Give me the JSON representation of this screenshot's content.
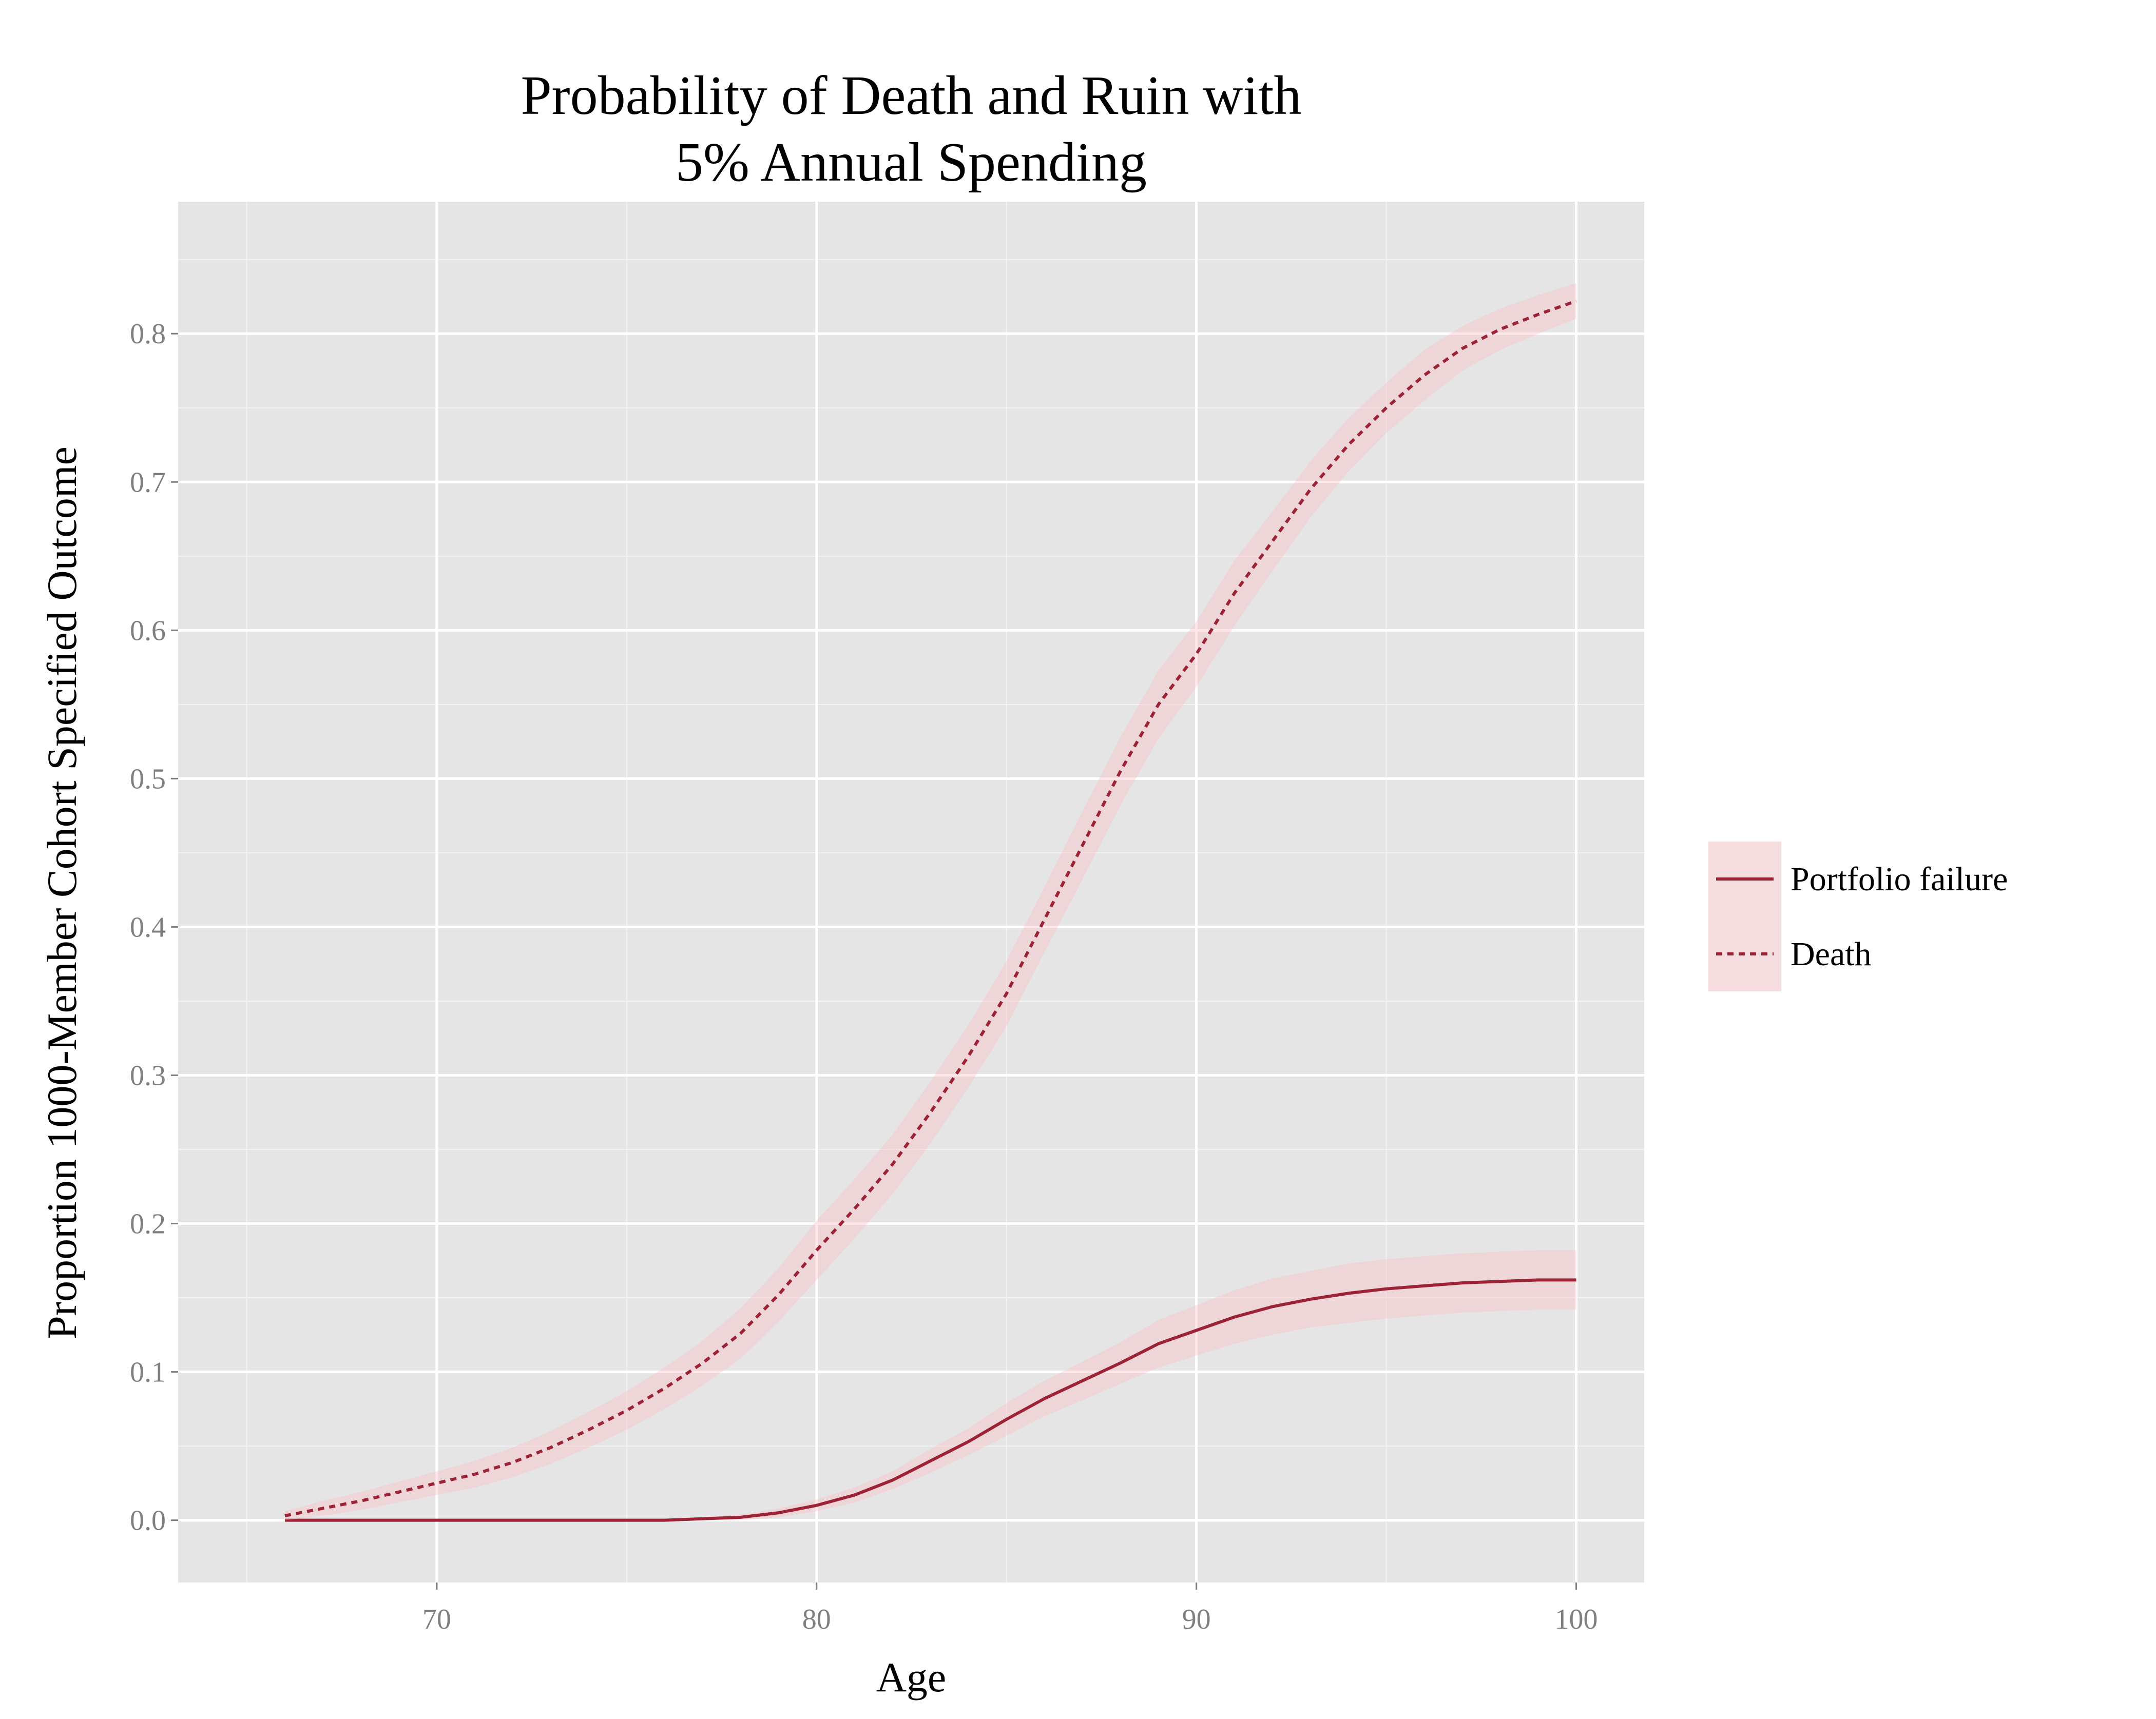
{
  "chart_data": {
    "type": "line",
    "title": [
      "Probability of Death and Ruin with",
      "5% Annual Spending"
    ],
    "x_label": "Age",
    "y_label": "Proportion 1000-Member Cohort Specified Outcome",
    "x": [
      66,
      67,
      68,
      69,
      70,
      71,
      72,
      73,
      74,
      75,
      76,
      77,
      78,
      79,
      80,
      81,
      82,
      83,
      84,
      85,
      86,
      87,
      88,
      89,
      90,
      91,
      92,
      93,
      94,
      95,
      96,
      97,
      98,
      99,
      100
    ],
    "series": [
      {
        "name": "Portfolio failure",
        "color": "#9b2335",
        "dash": false,
        "ribbon_color": "#ffb6c1",
        "values": [
          0,
          0,
          0,
          0,
          0,
          0,
          0,
          0,
          0,
          0,
          0,
          0.001,
          0.002,
          0.005,
          0.01,
          0.017,
          0.027,
          0.04,
          0.053,
          0.068,
          0.082,
          0.094,
          0.106,
          0.119,
          0.128,
          0.137,
          0.144,
          0.149,
          0.153,
          0.156,
          0.158,
          0.16,
          0.161,
          0.162,
          0.162
        ],
        "lower": [
          0,
          0,
          0,
          0,
          0,
          0,
          0,
          0,
          0,
          0,
          0,
          0,
          0,
          0.002,
          0.006,
          0.012,
          0.021,
          0.032,
          0.044,
          0.057,
          0.07,
          0.081,
          0.092,
          0.103,
          0.111,
          0.119,
          0.125,
          0.13,
          0.133,
          0.136,
          0.138,
          0.14,
          0.141,
          0.142,
          0.142
        ],
        "upper": [
          0,
          0,
          0,
          0,
          0,
          0,
          0,
          0,
          0,
          0,
          0,
          0.002,
          0.004,
          0.008,
          0.014,
          0.022,
          0.033,
          0.048,
          0.062,
          0.079,
          0.094,
          0.107,
          0.12,
          0.135,
          0.145,
          0.155,
          0.163,
          0.168,
          0.173,
          0.176,
          0.178,
          0.18,
          0.181,
          0.182,
          0.182
        ]
      },
      {
        "name": "Death",
        "color": "#9b2335",
        "dash": true,
        "ribbon_color": "#ffb6c1",
        "values": [
          0.003,
          0.008,
          0.013,
          0.019,
          0.025,
          0.031,
          0.039,
          0.049,
          0.061,
          0.074,
          0.089,
          0.106,
          0.126,
          0.152,
          0.182,
          0.21,
          0.24,
          0.275,
          0.313,
          0.355,
          0.405,
          0.455,
          0.505,
          0.55,
          0.584,
          0.625,
          0.66,
          0.695,
          0.725,
          0.75,
          0.772,
          0.79,
          0.803,
          0.813,
          0.822
        ],
        "lower": [
          0,
          0.003,
          0.007,
          0.012,
          0.017,
          0.022,
          0.029,
          0.038,
          0.049,
          0.061,
          0.075,
          0.091,
          0.109,
          0.134,
          0.162,
          0.19,
          0.22,
          0.254,
          0.292,
          0.333,
          0.383,
          0.432,
          0.482,
          0.527,
          0.562,
          0.603,
          0.64,
          0.676,
          0.707,
          0.733,
          0.755,
          0.775,
          0.789,
          0.8,
          0.81
        ],
        "upper": [
          0.006,
          0.013,
          0.019,
          0.026,
          0.033,
          0.04,
          0.049,
          0.06,
          0.073,
          0.087,
          0.103,
          0.121,
          0.143,
          0.17,
          0.202,
          0.23,
          0.26,
          0.296,
          0.334,
          0.377,
          0.427,
          0.478,
          0.528,
          0.573,
          0.606,
          0.647,
          0.68,
          0.714,
          0.743,
          0.767,
          0.789,
          0.805,
          0.817,
          0.826,
          0.834
        ]
      }
    ],
    "xlim": [
      63.19,
      101.79
    ],
    "ylim": [
      -0.042,
      0.889
    ],
    "xticks": [
      70,
      80,
      90,
      100
    ],
    "yticks": [
      {
        "value": 0,
        "label": "0.0"
      },
      0.1,
      0.2,
      0.3,
      0.4,
      0.5,
      0.6,
      0.7,
      0.8
    ],
    "xminorticks": [
      65,
      75,
      85,
      95
    ],
    "yminorticks": [
      0.05,
      0.15,
      0.25,
      0.35,
      0.45,
      0.55,
      0.65,
      0.75,
      0.85
    ],
    "grid": true,
    "legend": "right"
  }
}
